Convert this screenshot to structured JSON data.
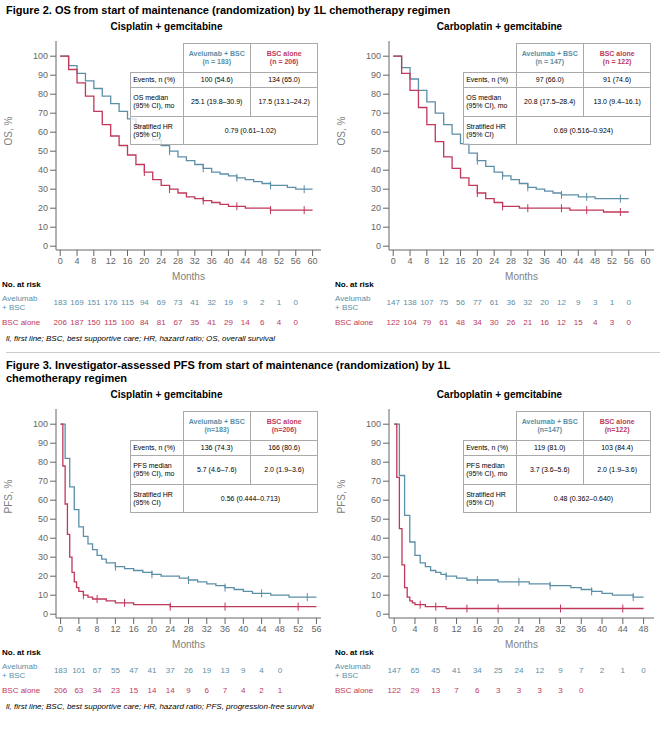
{
  "chart_data": [
    {
      "type": "line",
      "line_style": "steps",
      "grid": false,
      "figure_title": "Figure 2. OS from start of maintenance (randomization) by 1L chemotherapy regimen",
      "footnote": "ll, first line; BSC, best supportive care; HR, hazard ratio; OS, overall survival",
      "title": "Cisplatin + gemcitabine",
      "xlabel": "Months",
      "ylabel": "OS, %",
      "xlim": [
        -1,
        62
      ],
      "xticks": [
        0,
        4,
        8,
        12,
        16,
        20,
        24,
        28,
        32,
        36,
        40,
        44,
        48,
        52,
        56,
        60
      ],
      "ylim": [
        -2,
        108
      ],
      "yticks": [
        0,
        10,
        20,
        30,
        40,
        50,
        60,
        70,
        80,
        90,
        100
      ],
      "at_risk_title": "No. at risk",
      "series": [
        {
          "name": "Avelumab\n+ BSC",
          "color": "#5b8fa8",
          "marker": "|",
          "x": [
            0,
            2,
            4,
            6,
            8,
            10,
            12,
            14,
            16,
            18,
            20,
            22,
            24,
            26,
            28,
            30,
            32,
            34,
            36,
            38,
            40,
            42,
            44,
            46,
            48,
            50,
            52,
            54,
            56,
            58,
            60
          ],
          "values": [
            100,
            95,
            91,
            87,
            83,
            79,
            75,
            71,
            67,
            63,
            59,
            56,
            53,
            50,
            47,
            45,
            43,
            41,
            39,
            38,
            37,
            36,
            35,
            34,
            33,
            32,
            32,
            31,
            30,
            30,
            30
          ],
          "at_risk": [
            183,
            169,
            151,
            176,
            115,
            94,
            69,
            73,
            41,
            32,
            19,
            9,
            2,
            1,
            0
          ]
        },
        {
          "name": "BSC alone",
          "color": "#c0385a",
          "marker": "|",
          "x": [
            0,
            2,
            4,
            6,
            8,
            10,
            12,
            14,
            16,
            18,
            20,
            22,
            24,
            26,
            28,
            30,
            32,
            34,
            36,
            38,
            40,
            42,
            44,
            46,
            48,
            50,
            52,
            54,
            56,
            58,
            60
          ],
          "values": [
            100,
            93,
            86,
            79,
            71,
            64,
            58,
            53,
            48,
            43,
            39,
            35,
            32,
            30,
            28,
            26,
            25,
            24,
            23,
            22,
            21,
            21,
            20,
            20,
            20,
            19,
            19,
            19,
            19,
            19,
            19
          ],
          "at_risk": [
            206,
            187,
            150,
            115,
            100,
            84,
            81,
            67,
            35,
            41,
            29,
            14,
            6,
            4,
            0
          ]
        }
      ],
      "table": {
        "header": [
          "Avelumab + BSC\n(n = 183)",
          "BSC alone\n(n = 206)"
        ],
        "rows": [
          {
            "label": "Events, n (%)",
            "cells": [
              "100 (54.6)",
              "134 (65.0)"
            ]
          },
          {
            "label": "OS median\n(95% CI), mo",
            "cells": [
              "25.1 (19.8–30.9)",
              "17.5 (13.1–24.2)"
            ]
          },
          {
            "label": "Stratified HR\n(95% CI)",
            "cells": [
              "0.79 (0.61–1.02)"
            ]
          }
        ]
      }
    },
    {
      "type": "line",
      "line_style": "steps",
      "grid": false,
      "title": "Carboplatin + gemcitabine",
      "xlabel": "Months",
      "ylabel": "OS, %",
      "xlim": [
        -1,
        62
      ],
      "xticks": [
        0,
        4,
        8,
        12,
        16,
        20,
        24,
        28,
        32,
        36,
        40,
        44,
        48,
        52,
        56,
        60
      ],
      "ylim": [
        -2,
        108
      ],
      "yticks": [
        0,
        10,
        20,
        30,
        40,
        50,
        60,
        70,
        80,
        90,
        100
      ],
      "at_risk_title": "No. at risk",
      "series": [
        {
          "name": "Avelumab\n+ BSC",
          "color": "#5b8fa8",
          "marker": "|",
          "x": [
            0,
            2,
            4,
            6,
            8,
            10,
            12,
            14,
            16,
            18,
            20,
            22,
            24,
            26,
            28,
            30,
            32,
            34,
            36,
            38,
            40,
            42,
            44,
            46,
            48,
            50,
            52,
            54,
            56
          ],
          "values": [
            100,
            94,
            88,
            82,
            76,
            70,
            64,
            59,
            54,
            49,
            45,
            42,
            39,
            37,
            35,
            33,
            31,
            30,
            29,
            28,
            27,
            27,
            26,
            26,
            25,
            25,
            25,
            25,
            25
          ],
          "at_risk": [
            147,
            138,
            107,
            75,
            56,
            77,
            61,
            36,
            32,
            20,
            12,
            9,
            3,
            1,
            0
          ]
        },
        {
          "name": "BSC alone",
          "color": "#c0385a",
          "marker": "|",
          "x": [
            0,
            2,
            4,
            6,
            8,
            10,
            12,
            14,
            16,
            18,
            20,
            22,
            24,
            26,
            28,
            30,
            32,
            34,
            36,
            38,
            40,
            42,
            44,
            46,
            48,
            50,
            52,
            54,
            56
          ],
          "values": [
            100,
            91,
            82,
            73,
            64,
            55,
            47,
            41,
            36,
            32,
            28,
            25,
            23,
            21,
            21,
            20,
            20,
            20,
            20,
            20,
            20,
            19,
            19,
            19,
            19,
            18,
            18,
            18,
            18
          ],
          "at_risk": [
            122,
            104,
            79,
            61,
            48,
            34,
            30,
            26,
            21,
            16,
            12,
            15,
            4,
            3,
            0
          ]
        }
      ],
      "table": {
        "header": [
          "Avelumab + BSC\n(n = 147)",
          "BSC alone\n(n = 122)"
        ],
        "rows": [
          {
            "label": "Events, n (%)",
            "cells": [
              "97 (66.0)",
              "91 (74.6)"
            ]
          },
          {
            "label": "OS median\n(95% CI), mo",
            "cells": [
              "20.8 (17.5–28.4)",
              "13.0 (9.4–16.1)"
            ]
          },
          {
            "label": "Stratified HR\n(95% CI)",
            "cells": [
              "0.69 (0.516–0.924)"
            ]
          }
        ]
      }
    },
    {
      "type": "line",
      "line_style": "steps",
      "grid": false,
      "figure_title": "Figure 3. Investigator-assessed PFS from start of maintenance (randomization) by 1L\nchemotherapy regimen",
      "footnote": "ll, first line; BSC, best supportive care; HR, hazard ratio; PFS, progression-free survival",
      "title": "Cisplatin + gemcitabine",
      "xlabel": "Months",
      "ylabel": "PFS, %",
      "xlim": [
        -1,
        57
      ],
      "xticks": [
        0,
        4,
        8,
        12,
        16,
        20,
        24,
        28,
        32,
        36,
        40,
        44,
        48,
        52,
        56
      ],
      "ylim": [
        -2,
        108
      ],
      "yticks": [
        0,
        10,
        20,
        30,
        40,
        50,
        60,
        70,
        80,
        90,
        100
      ],
      "at_risk_title": "No. at risk",
      "series": [
        {
          "name": "Avelumab\n+ BSC",
          "color": "#5b8fa8",
          "marker": "|",
          "x": [
            0,
            1,
            2,
            3,
            4,
            5,
            6,
            7,
            8,
            9,
            10,
            12,
            14,
            16,
            18,
            20,
            22,
            24,
            26,
            28,
            30,
            32,
            34,
            36,
            38,
            40,
            42,
            44,
            46,
            48,
            50,
            52,
            54,
            56
          ],
          "values": [
            100,
            82,
            67,
            55,
            46,
            41,
            37,
            34,
            31,
            29,
            27,
            25,
            24,
            23,
            22,
            21,
            20,
            20,
            19,
            18,
            17,
            16,
            15,
            14,
            13,
            12,
            11,
            11,
            10,
            10,
            9,
            9,
            9,
            9
          ],
          "at_risk": [
            183,
            101,
            67,
            55,
            47,
            41,
            37,
            26,
            19,
            13,
            9,
            4,
            0
          ]
        },
        {
          "name": "BSC alone",
          "color": "#c0385a",
          "marker": "|",
          "x": [
            0,
            0.5,
            1,
            1.5,
            2,
            2.5,
            3,
            3.5,
            4,
            5,
            6,
            7,
            8,
            10,
            12,
            14,
            16,
            18,
            20,
            24,
            28,
            32,
            36,
            40,
            44,
            48,
            52,
            56
          ],
          "values": [
            100,
            78,
            58,
            42,
            30,
            22,
            17,
            14,
            12,
            10,
            9,
            8,
            8,
            7,
            6,
            6,
            5,
            5,
            5,
            4,
            4,
            4,
            4,
            4,
            4,
            4,
            4,
            4
          ],
          "at_risk": [
            206,
            63,
            34,
            23,
            15,
            14,
            14,
            9,
            6,
            7,
            4,
            2,
            1
          ]
        }
      ],
      "table": {
        "header": [
          "Avelumab + BSC\n(n=183)",
          "BSC alone\n(n=206)"
        ],
        "rows": [
          {
            "label": "Events, n (%)",
            "cells": [
              "136 (74.3)",
              "166 (80.6)"
            ]
          },
          {
            "label": "PFS median\n(95% CI), mo",
            "cells": [
              "5.7 (4.6–7.6)",
              "2.0 (1.9–3.6)"
            ]
          },
          {
            "label": "Stratified HR\n(95% CI)",
            "cells": [
              "0.56 (0.444–0.713)"
            ]
          }
        ]
      }
    },
    {
      "type": "line",
      "line_style": "steps",
      "grid": false,
      "title": "Carboplatin + gemcitabine",
      "xlabel": "Months",
      "ylabel": "PFS, %",
      "xlim": [
        -1,
        50
      ],
      "xticks": [
        0,
        4,
        8,
        12,
        16,
        20,
        24,
        28,
        32,
        36,
        40,
        44,
        48
      ],
      "ylim": [
        -2,
        108
      ],
      "yticks": [
        0,
        10,
        20,
        30,
        40,
        50,
        60,
        70,
        80,
        90,
        100
      ],
      "at_risk_title": "No. at risk",
      "series": [
        {
          "name": "Avelumab\n+ BSC",
          "color": "#5b8fa8",
          "marker": "|",
          "x": [
            0,
            1,
            2,
            3,
            4,
            5,
            6,
            7,
            8,
            9,
            10,
            12,
            14,
            16,
            18,
            20,
            22,
            24,
            26,
            28,
            30,
            32,
            34,
            36,
            38,
            40,
            42,
            44,
            46,
            48
          ],
          "values": [
            100,
            73,
            52,
            38,
            31,
            27,
            25,
            23,
            22,
            21,
            20,
            19,
            18,
            18,
            18,
            17,
            17,
            17,
            16,
            16,
            15,
            15,
            14,
            13,
            12,
            11,
            10,
            10,
            9,
            9
          ],
          "at_risk": [
            147,
            65,
            45,
            41,
            34,
            25,
            24,
            12,
            9,
            7,
            2,
            1,
            0
          ]
        },
        {
          "name": "BSC alone",
          "color": "#c0385a",
          "marker": "|",
          "x": [
            0,
            0.5,
            1,
            1.5,
            2,
            2.5,
            3,
            3.5,
            4,
            5,
            6,
            7,
            8,
            10,
            12,
            14,
            16,
            18,
            20,
            24,
            28,
            32,
            36,
            40,
            44,
            48
          ],
          "values": [
            100,
            72,
            45,
            26,
            14,
            9,
            7,
            6,
            5,
            5,
            4,
            4,
            4,
            3,
            3,
            3,
            3,
            3,
            3,
            3,
            3,
            3,
            3,
            3,
            3,
            3
          ],
          "at_risk": [
            122,
            29,
            13,
            7,
            6,
            3,
            3,
            3,
            3,
            0
          ]
        }
      ],
      "table": {
        "header": [
          "Avelumab + BSC\n(n=147)",
          "BSC alone\n(n=122)"
        ],
        "rows": [
          {
            "label": "Events, n (%)",
            "cells": [
              "119 (81.0)",
              "103 (84.4)"
            ]
          },
          {
            "label": "PFS median\n(95% CI), mo",
            "cells": [
              "3.7 (3.6–5.6)",
              "2.0 (1.9–3.6)"
            ]
          },
          {
            "label": "Stratified HR\n(95% CI)",
            "cells": [
              "0.48 (0.362–0.640)"
            ]
          }
        ]
      }
    }
  ]
}
